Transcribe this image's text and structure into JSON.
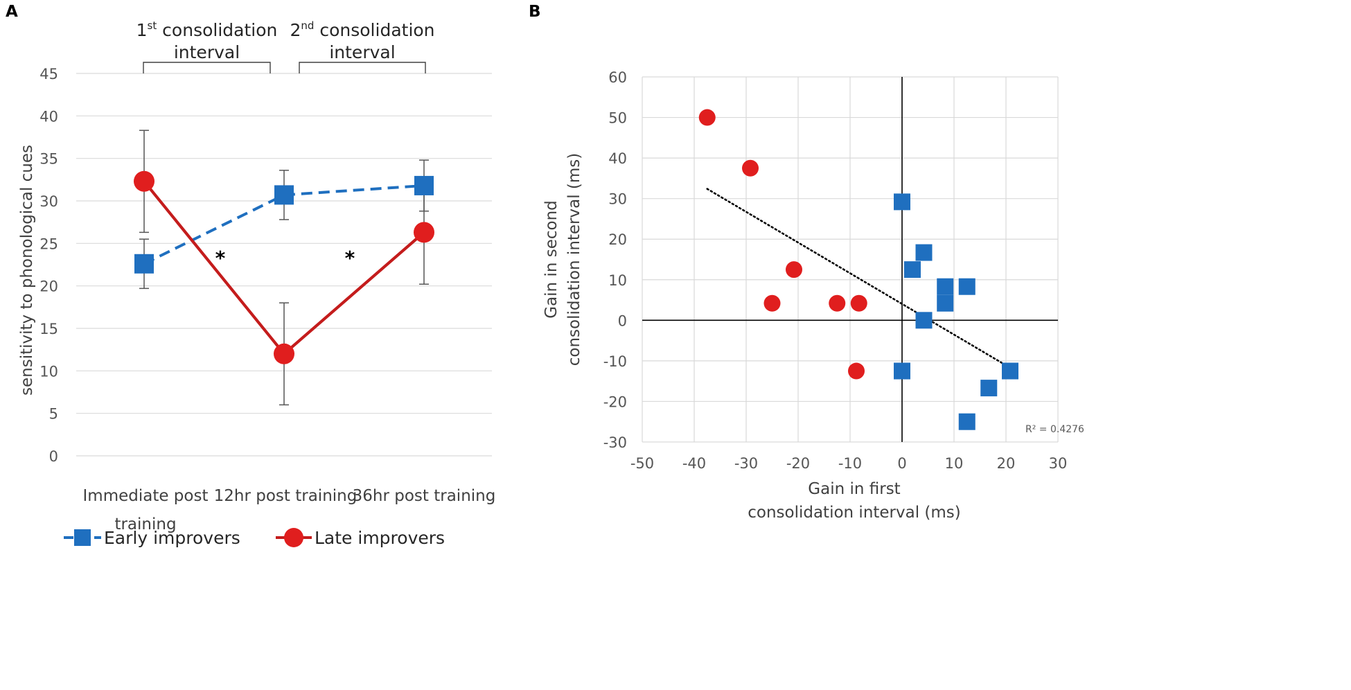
{
  "colors": {
    "early": "#1f6fbf",
    "late": "#e01e1e",
    "late_line": "#c41c1c",
    "grid": "#d9d9d9",
    "errbar": "#555555"
  },
  "chart_data": [
    {
      "panel_label": "A",
      "type": "line",
      "ylabel": "sensitivity to phonological cues",
      "ylim": [
        0,
        45
      ],
      "yticks": [
        "0",
        "5",
        "10",
        "15",
        "20",
        "25",
        "30",
        "35",
        "40",
        "45"
      ],
      "categories": [
        "Immediate post training",
        "12hr post training",
        "36hr post training"
      ],
      "category_lines": [
        [
          "Immediate post",
          "training"
        ],
        [
          "12hr post training"
        ],
        [
          "36hr post training"
        ]
      ],
      "series": [
        {
          "name": "Early improvers",
          "style": "dashed",
          "marker": "square",
          "values": [
            22.6,
            30.7,
            31.8
          ],
          "error": [
            2.9,
            2.9,
            3.0
          ]
        },
        {
          "name": "Late improvers",
          "style": "solid",
          "marker": "circle",
          "values": [
            32.3,
            12.0,
            26.3
          ],
          "error": [
            6.0,
            6.0,
            6.1
          ]
        }
      ],
      "brackets": [
        {
          "text_pre": "1",
          "sup": "st",
          "text_post": " consolidation",
          "line2": "interval",
          "from": 0,
          "to": 1
        },
        {
          "text_pre": "2",
          "sup": "nd",
          "text_post": " consolidation",
          "line2": "interval",
          "from": 1,
          "to": 2
        }
      ],
      "annotations": [
        "*",
        "*"
      ],
      "legend": {
        "position": "bottom",
        "entries": [
          "Early improvers",
          "Late improvers"
        ]
      }
    },
    {
      "panel_label": "B",
      "type": "scatter",
      "xlabel": [
        "Gain in first",
        "consolidation interval (ms)"
      ],
      "ylabel": [
        "Gain in second",
        "consolidation interval (ms)"
      ],
      "xlim": [
        -50,
        30
      ],
      "ylim": [
        -30,
        60
      ],
      "xticks": [
        "-50",
        "-40",
        "-30",
        "-20",
        "-10",
        "0",
        "10",
        "20",
        "30"
      ],
      "yticks": [
        "-30",
        "-20",
        "-10",
        "0",
        "10",
        "20",
        "30",
        "40",
        "50",
        "60"
      ],
      "series": [
        {
          "name": "Late improvers",
          "marker": "circle",
          "points": [
            [
              -37.5,
              50
            ],
            [
              -29.2,
              37.5
            ],
            [
              -20.8,
              12.5
            ],
            [
              -25,
              4.2
            ],
            [
              -12.5,
              4.2
            ],
            [
              -8.3,
              4.2
            ],
            [
              -8.8,
              -12.5
            ]
          ]
        },
        {
          "name": "Early improvers",
          "marker": "square",
          "points": [
            [
              0,
              29.2
            ],
            [
              4.2,
              16.7
            ],
            [
              2,
              12.5
            ],
            [
              8.3,
              8.3
            ],
            [
              8.3,
              4.2
            ],
            [
              12.5,
              8.3
            ],
            [
              4.2,
              0
            ],
            [
              0,
              -12.5
            ],
            [
              20.8,
              -12.5
            ],
            [
              16.7,
              -16.7
            ],
            [
              12.5,
              -25
            ]
          ]
        }
      ],
      "trendline": {
        "x": [
          -37.5,
          20.8
        ],
        "y": [
          32.4,
          -11.7
        ]
      },
      "r2_label": "R² = 0.4276"
    }
  ]
}
